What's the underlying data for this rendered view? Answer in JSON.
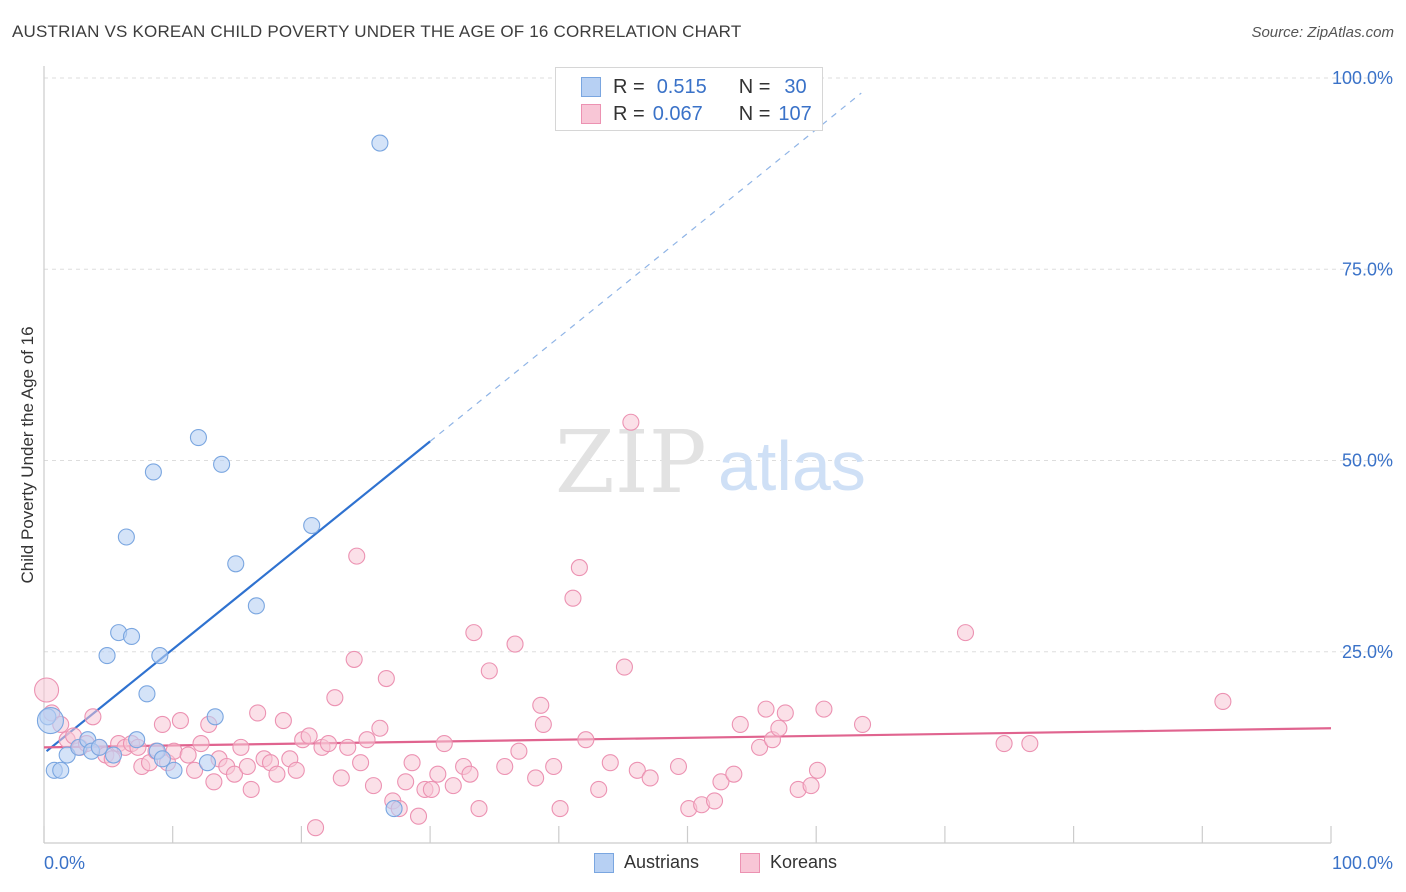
{
  "header": {
    "title": "AUSTRIAN VS KOREAN CHILD POVERTY UNDER THE AGE OF 16 CORRELATION CHART",
    "source": "Source: ZipAtlas.com"
  },
  "watermark": {
    "zip": "ZIP",
    "atlas": "atlas"
  },
  "legend_top": {
    "row1": {
      "r_label": "R =",
      "r_value": "0.515",
      "n_label": "N =",
      "n_value": "30"
    },
    "row2": {
      "r_label": "R =",
      "r_value": "0.067",
      "n_label": "N =",
      "n_value": "107"
    }
  },
  "legend_bottom": {
    "series1": "Austrians",
    "series2": "Koreans"
  },
  "colors": {
    "austrians_fill": "#b7d0f3",
    "austrians_stroke": "#7aa6e0",
    "austrians_line": "#2f72d0",
    "koreans_fill": "#f8c6d6",
    "koreans_stroke": "#ec92b2",
    "koreans_line": "#e0648f",
    "axis_text": "#3a72c8",
    "grid": "#dddddd"
  },
  "chart_data": {
    "type": "scatter",
    "title": "AUSTRIAN VS KOREAN CHILD POVERTY UNDER THE AGE OF 16 CORRELATION CHART",
    "xlabel": "",
    "ylabel": "Child Poverty Under the Age of 16",
    "xlim": [
      0,
      100
    ],
    "ylim": [
      0,
      100
    ],
    "x_tick_labels": [
      "0.0%",
      "100.0%"
    ],
    "y_tick_labels": [
      "25.0%",
      "50.0%",
      "75.0%",
      "100.0%"
    ],
    "y_ticks": [
      25,
      50,
      75,
      100
    ],
    "grid": true,
    "series": [
      {
        "name": "Austrians",
        "R": 0.515,
        "N": 30,
        "trend": {
          "x0": 0.2,
          "y0": 12.0,
          "x1": 30.0,
          "y1": 52.5,
          "dashed_to_x": 63.5
        },
        "points": [
          [
            0.3,
            16.5
          ],
          [
            0.8,
            9.5
          ],
          [
            1.3,
            9.5
          ],
          [
            1.8,
            11.5
          ],
          [
            2.7,
            12.5
          ],
          [
            3.4,
            13.5
          ],
          [
            3.7,
            12.0
          ],
          [
            4.3,
            12.5
          ],
          [
            5.4,
            11.5
          ],
          [
            4.9,
            24.5
          ],
          [
            5.8,
            27.5
          ],
          [
            6.4,
            40.0
          ],
          [
            6.8,
            27.0
          ],
          [
            7.2,
            13.5
          ],
          [
            8.0,
            19.5
          ],
          [
            8.5,
            48.5
          ],
          [
            8.8,
            12.0
          ],
          [
            9.2,
            11.0
          ],
          [
            9.0,
            24.5
          ],
          [
            10.1,
            9.5
          ],
          [
            12.0,
            53.0
          ],
          [
            12.7,
            10.5
          ],
          [
            13.3,
            16.5
          ],
          [
            13.8,
            49.5
          ],
          [
            14.9,
            36.5
          ],
          [
            16.5,
            31.0
          ],
          [
            20.8,
            41.5
          ],
          [
            26.1,
            91.5
          ],
          [
            27.2,
            4.5
          ],
          [
            0.5,
            16.0
          ]
        ]
      },
      {
        "name": "Koreans",
        "R": 0.067,
        "N": 107,
        "trend": {
          "x0": 0,
          "y0": 12.5,
          "x1": 100,
          "y1": 15.0
        },
        "points": [
          [
            0.2,
            20.0
          ],
          [
            0.6,
            17.0
          ],
          [
            1.3,
            15.5
          ],
          [
            1.8,
            13.5
          ],
          [
            2.3,
            14.0
          ],
          [
            2.8,
            12.5
          ],
          [
            3.3,
            13.0
          ],
          [
            3.8,
            16.5
          ],
          [
            4.3,
            12.5
          ],
          [
            4.8,
            11.5
          ],
          [
            5.3,
            11.0
          ],
          [
            5.8,
            13.0
          ],
          [
            6.3,
            12.5
          ],
          [
            6.8,
            13.0
          ],
          [
            7.3,
            12.5
          ],
          [
            7.6,
            10.0
          ],
          [
            8.2,
            10.5
          ],
          [
            8.7,
            12.0
          ],
          [
            9.2,
            15.5
          ],
          [
            9.6,
            10.5
          ],
          [
            10.1,
            12.0
          ],
          [
            10.6,
            16.0
          ],
          [
            11.2,
            11.5
          ],
          [
            11.7,
            9.5
          ],
          [
            12.2,
            13.0
          ],
          [
            12.8,
            15.5
          ],
          [
            13.2,
            8.0
          ],
          [
            13.6,
            11.0
          ],
          [
            14.2,
            10.0
          ],
          [
            14.8,
            9.0
          ],
          [
            15.3,
            12.5
          ],
          [
            15.8,
            10.0
          ],
          [
            16.1,
            7.0
          ],
          [
            16.6,
            17.0
          ],
          [
            17.1,
            11.0
          ],
          [
            17.6,
            10.5
          ],
          [
            18.1,
            9.0
          ],
          [
            18.6,
            16.0
          ],
          [
            19.1,
            11.0
          ],
          [
            19.6,
            9.5
          ],
          [
            20.1,
            13.5
          ],
          [
            20.6,
            14.0
          ],
          [
            21.1,
            2.0
          ],
          [
            21.6,
            12.5
          ],
          [
            22.1,
            13.0
          ],
          [
            22.6,
            19.0
          ],
          [
            23.1,
            8.5
          ],
          [
            23.6,
            12.5
          ],
          [
            24.1,
            24.0
          ],
          [
            24.3,
            37.5
          ],
          [
            24.6,
            10.5
          ],
          [
            25.1,
            13.5
          ],
          [
            25.6,
            7.5
          ],
          [
            26.1,
            15.0
          ],
          [
            26.6,
            21.5
          ],
          [
            27.1,
            5.5
          ],
          [
            27.6,
            4.5
          ],
          [
            28.1,
            8.0
          ],
          [
            28.6,
            10.5
          ],
          [
            29.1,
            3.5
          ],
          [
            29.6,
            7.0
          ],
          [
            30.1,
            7.0
          ],
          [
            30.6,
            9.0
          ],
          [
            31.1,
            13.0
          ],
          [
            31.8,
            7.5
          ],
          [
            32.6,
            10.0
          ],
          [
            33.1,
            9.0
          ],
          [
            33.8,
            4.5
          ],
          [
            33.4,
            27.5
          ],
          [
            34.6,
            22.5
          ],
          [
            35.8,
            10.0
          ],
          [
            36.6,
            26.0
          ],
          [
            36.9,
            12.0
          ],
          [
            38.2,
            8.5
          ],
          [
            38.6,
            18.0
          ],
          [
            38.8,
            15.5
          ],
          [
            39.6,
            10.0
          ],
          [
            40.1,
            4.5
          ],
          [
            41.1,
            32.0
          ],
          [
            41.6,
            36.0
          ],
          [
            42.1,
            13.5
          ],
          [
            43.1,
            7.0
          ],
          [
            44.0,
            10.5
          ],
          [
            45.1,
            23.0
          ],
          [
            45.6,
            55.0
          ],
          [
            46.1,
            9.5
          ],
          [
            47.1,
            8.5
          ],
          [
            49.3,
            10.0
          ],
          [
            50.1,
            4.5
          ],
          [
            51.1,
            5.0
          ],
          [
            52.1,
            5.5
          ],
          [
            52.6,
            8.0
          ],
          [
            53.6,
            9.0
          ],
          [
            54.1,
            15.5
          ],
          [
            55.6,
            12.5
          ],
          [
            56.1,
            17.5
          ],
          [
            56.6,
            13.5
          ],
          [
            57.1,
            15.0
          ],
          [
            57.6,
            17.0
          ],
          [
            58.6,
            7.0
          ],
          [
            59.6,
            7.5
          ],
          [
            60.1,
            9.5
          ],
          [
            60.6,
            17.5
          ],
          [
            63.6,
            15.5
          ],
          [
            71.6,
            27.5
          ],
          [
            74.6,
            13.0
          ],
          [
            76.6,
            13.0
          ],
          [
            91.6,
            18.5
          ]
        ]
      }
    ]
  }
}
